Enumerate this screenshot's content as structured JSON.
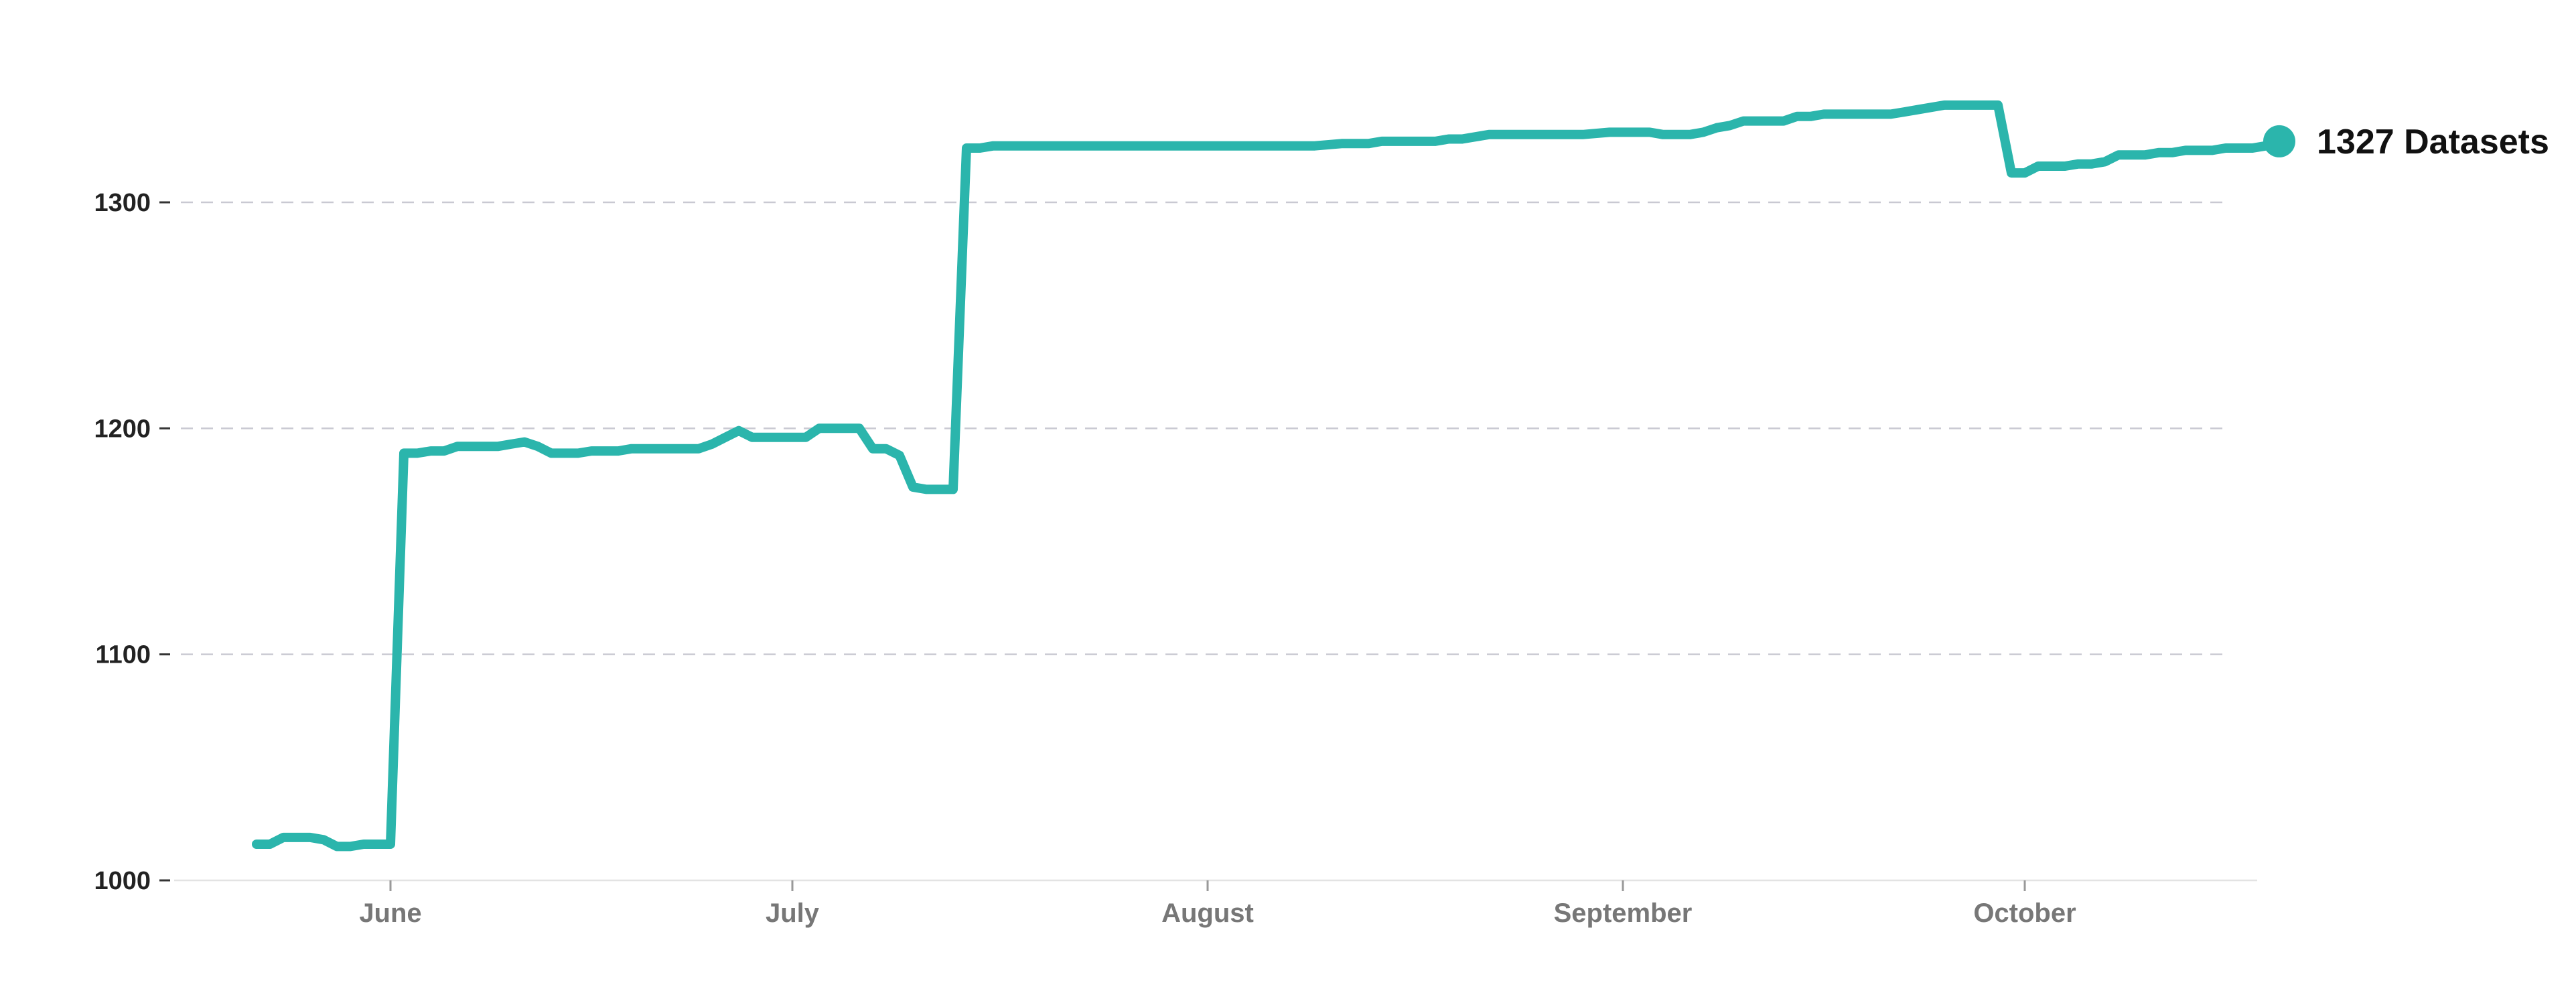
{
  "chart_data": {
    "type": "line",
    "title": "",
    "xlabel": "",
    "ylabel": "",
    "ylim": [
      1000,
      1350
    ],
    "y_ticks": [
      1000,
      1100,
      1200,
      1300
    ],
    "x_ticks": [
      {
        "date": "2023-06-01",
        "label": "June"
      },
      {
        "date": "2023-07-01",
        "label": "July"
      },
      {
        "date": "2023-08-01",
        "label": "August"
      },
      {
        "date": "2023-09-01",
        "label": "September"
      },
      {
        "date": "2023-10-01",
        "label": "October"
      }
    ],
    "grid": true,
    "color": "#2bb5ac",
    "end_label": {
      "value": "1327",
      "text": "Datasets"
    },
    "series": [
      {
        "points": [
          [
            "2023-05-22",
            1016
          ],
          [
            "2023-05-23",
            1016
          ],
          [
            "2023-05-24",
            1019
          ],
          [
            "2023-05-25",
            1019
          ],
          [
            "2023-05-26",
            1019
          ],
          [
            "2023-05-27",
            1018
          ],
          [
            "2023-05-28",
            1015
          ],
          [
            "2023-05-29",
            1015
          ],
          [
            "2023-05-30",
            1016
          ],
          [
            "2023-05-31",
            1016
          ],
          [
            "2023-06-01",
            1016
          ],
          [
            "2023-06-02",
            1189
          ],
          [
            "2023-06-03",
            1189
          ],
          [
            "2023-06-04",
            1190
          ],
          [
            "2023-06-05",
            1190
          ],
          [
            "2023-06-06",
            1192
          ],
          [
            "2023-06-07",
            1192
          ],
          [
            "2023-06-08",
            1192
          ],
          [
            "2023-06-09",
            1192
          ],
          [
            "2023-06-10",
            1193
          ],
          [
            "2023-06-11",
            1194
          ],
          [
            "2023-06-12",
            1192
          ],
          [
            "2023-06-13",
            1189
          ],
          [
            "2023-06-14",
            1189
          ],
          [
            "2023-06-15",
            1189
          ],
          [
            "2023-06-16",
            1190
          ],
          [
            "2023-06-17",
            1190
          ],
          [
            "2023-06-18",
            1190
          ],
          [
            "2023-06-19",
            1191
          ],
          [
            "2023-06-20",
            1191
          ],
          [
            "2023-06-21",
            1191
          ],
          [
            "2023-06-22",
            1191
          ],
          [
            "2023-06-23",
            1191
          ],
          [
            "2023-06-24",
            1191
          ],
          [
            "2023-06-25",
            1193
          ],
          [
            "2023-06-26",
            1196
          ],
          [
            "2023-06-27",
            1199
          ],
          [
            "2023-06-28",
            1196
          ],
          [
            "2023-06-29",
            1196
          ],
          [
            "2023-06-30",
            1196
          ],
          [
            "2023-07-01",
            1196
          ],
          [
            "2023-07-02",
            1196
          ],
          [
            "2023-07-03",
            1200
          ],
          [
            "2023-07-04",
            1200
          ],
          [
            "2023-07-05",
            1200
          ],
          [
            "2023-07-06",
            1200
          ],
          [
            "2023-07-07",
            1191
          ],
          [
            "2023-07-08",
            1191
          ],
          [
            "2023-07-09",
            1188
          ],
          [
            "2023-07-10",
            1174
          ],
          [
            "2023-07-11",
            1173
          ],
          [
            "2023-07-12",
            1173
          ],
          [
            "2023-07-13",
            1173
          ],
          [
            "2023-07-14",
            1324
          ],
          [
            "2023-07-15",
            1324
          ],
          [
            "2023-07-16",
            1325
          ],
          [
            "2023-07-20",
            1325
          ],
          [
            "2023-07-25",
            1325
          ],
          [
            "2023-07-31",
            1325
          ],
          [
            "2023-08-05",
            1325
          ],
          [
            "2023-08-09",
            1325
          ],
          [
            "2023-08-11",
            1326
          ],
          [
            "2023-08-13",
            1326
          ],
          [
            "2023-08-14",
            1327
          ],
          [
            "2023-08-18",
            1327
          ],
          [
            "2023-08-19",
            1328
          ],
          [
            "2023-08-20",
            1328
          ],
          [
            "2023-08-22",
            1330
          ],
          [
            "2023-08-27",
            1330
          ],
          [
            "2023-08-29",
            1330
          ],
          [
            "2023-08-31",
            1331
          ],
          [
            "2023-09-03",
            1331
          ],
          [
            "2023-09-04",
            1330
          ],
          [
            "2023-09-06",
            1330
          ],
          [
            "2023-09-07",
            1331
          ],
          [
            "2023-09-08",
            1333
          ],
          [
            "2023-09-09",
            1334
          ],
          [
            "2023-09-10",
            1336
          ],
          [
            "2023-09-13",
            1336
          ],
          [
            "2023-09-14",
            1338
          ],
          [
            "2023-09-15",
            1338
          ],
          [
            "2023-09-16",
            1339
          ],
          [
            "2023-09-21",
            1339
          ],
          [
            "2023-09-22",
            1340
          ],
          [
            "2023-09-23",
            1341
          ],
          [
            "2023-09-25",
            1343
          ],
          [
            "2023-09-29",
            1343
          ],
          [
            "2023-09-30",
            1313
          ],
          [
            "2023-10-01",
            1313
          ],
          [
            "2023-10-02",
            1316
          ],
          [
            "2023-10-04",
            1316
          ],
          [
            "2023-10-05",
            1317
          ],
          [
            "2023-10-06",
            1317
          ],
          [
            "2023-10-07",
            1318
          ],
          [
            "2023-10-08",
            1321
          ],
          [
            "2023-10-10",
            1321
          ],
          [
            "2023-10-11",
            1322
          ],
          [
            "2023-10-12",
            1322
          ],
          [
            "2023-10-13",
            1323
          ],
          [
            "2023-10-15",
            1323
          ],
          [
            "2023-10-16",
            1324
          ],
          [
            "2023-10-18",
            1324
          ],
          [
            "2023-10-19",
            1325
          ],
          [
            "2023-10-20",
            1327
          ]
        ]
      }
    ]
  }
}
